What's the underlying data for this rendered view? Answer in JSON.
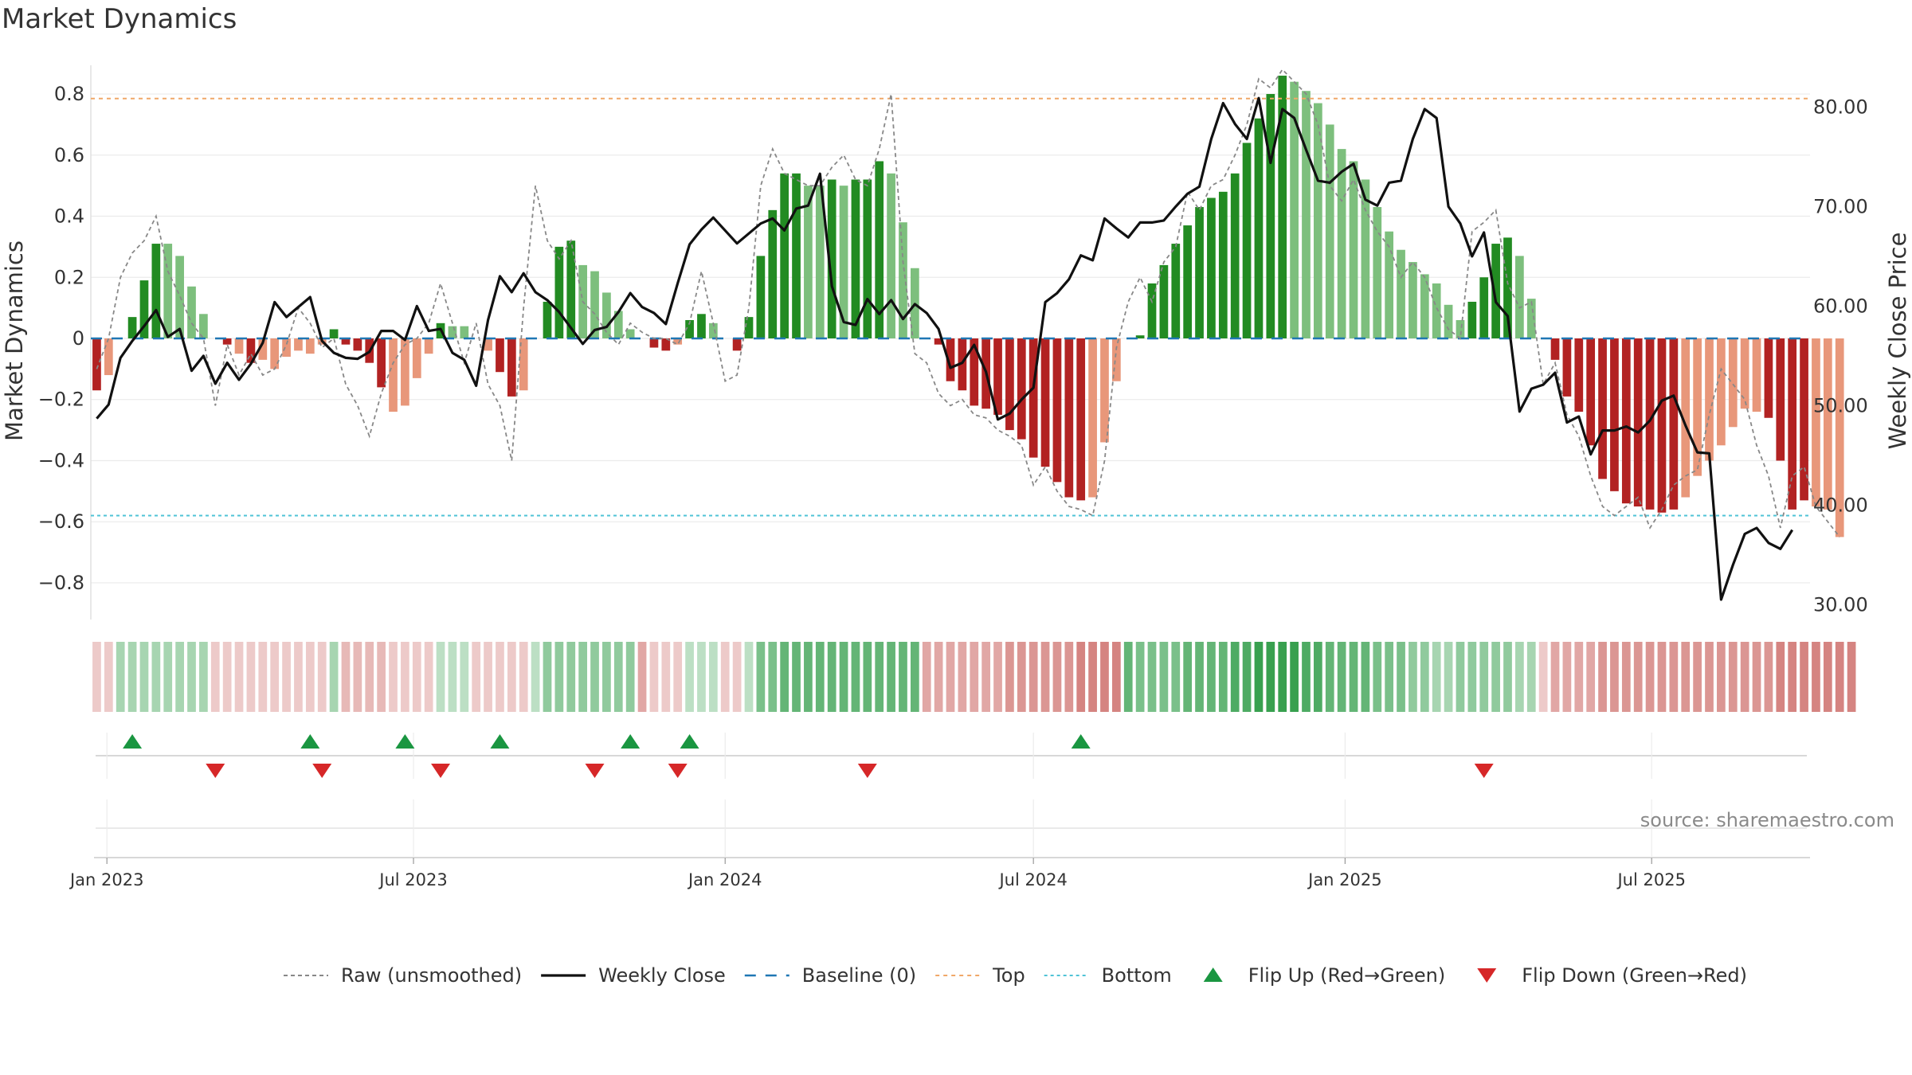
{
  "title": "Market Dynamics",
  "source": "source: sharemaestro.com",
  "colors": {
    "strong_green": "#228b22",
    "light_green": "#7dbf7d",
    "strong_red": "#b22222",
    "light_red": "#e8977a",
    "close": "#111111",
    "raw": "#888888",
    "baseline": "#1f77b4",
    "top": "#f0a868",
    "bottom": "#4fc3d6",
    "flip_up": "#1a9641",
    "flip_down": "#d62728"
  },
  "legend": [
    {
      "label": "Raw (unsmoothed)",
      "key": "raw"
    },
    {
      "label": "Weekly Close",
      "key": "close"
    },
    {
      "label": "Baseline (0)",
      "key": "baseline"
    },
    {
      "label": "Top",
      "key": "top"
    },
    {
      "label": "Bottom",
      "key": "bottom"
    },
    {
      "label": "Flip Up (Red→Green)",
      "key": "flip_up"
    },
    {
      "label": "Flip Down (Green→Red)",
      "key": "flip_down"
    }
  ],
  "chart_data": {
    "type": "bar",
    "title": "Market Dynamics",
    "ylabel": "Market Dynamics",
    "y2label": "Weekly Close Price",
    "ylim": [
      -0.92,
      0.92
    ],
    "y2lim": [
      28.5,
      85.0
    ],
    "yticks": [
      -0.8,
      -0.6,
      -0.4,
      -0.2,
      0,
      0.2,
      0.4,
      0.6,
      0.8
    ],
    "ytick_labels": [
      "−0.8",
      "−0.6",
      "−0.4",
      "−0.2",
      "0",
      "0.2",
      "0.4",
      "0.6",
      "0.8"
    ],
    "y2ticks": [
      30,
      40,
      50,
      60,
      70,
      80
    ],
    "y2tick_labels": [
      "30.00",
      "40.00",
      "50.00",
      "60.00",
      "70.00",
      "80.00"
    ],
    "top_level": 0.785,
    "bottom_level": -0.58,
    "baseline": 0,
    "x_start": "2022-12-26",
    "weeks": 145,
    "xticks": [
      {
        "date": "2023-01-01",
        "label": "Jan 2023"
      },
      {
        "date": "2023-07-01",
        "label": "Jul 2023"
      },
      {
        "date": "2024-01-01",
        "label": "Jan 2024"
      },
      {
        "date": "2024-07-01",
        "label": "Jul 2024"
      },
      {
        "date": "2025-01-01",
        "label": "Jan 2025"
      },
      {
        "date": "2025-07-01",
        "label": "Jul 2025"
      }
    ],
    "grid": true,
    "legend_position": "bottom",
    "momentum": [
      -0.17,
      -0.12,
      0.0,
      0.07,
      0.19,
      0.31,
      0.31,
      0.27,
      0.17,
      0.08,
      0.0,
      -0.02,
      -0.05,
      -0.08,
      -0.07,
      -0.1,
      -0.06,
      -0.04,
      -0.05,
      -0.02,
      0.03,
      -0.02,
      -0.04,
      -0.08,
      -0.16,
      -0.24,
      -0.22,
      -0.13,
      -0.05,
      0.05,
      0.04,
      0.04,
      0.0,
      -0.04,
      -0.11,
      -0.19,
      -0.17,
      0.0,
      0.12,
      0.3,
      0.32,
      0.24,
      0.22,
      0.15,
      0.09,
      0.03,
      0.0,
      -0.03,
      -0.04,
      -0.02,
      0.06,
      0.08,
      0.05,
      0.0,
      -0.04,
      0.07,
      0.27,
      0.42,
      0.54,
      0.54,
      0.5,
      0.5,
      0.52,
      0.5,
      0.52,
      0.52,
      0.58,
      0.54,
      0.38,
      0.23,
      0.0,
      -0.02,
      -0.14,
      -0.17,
      -0.22,
      -0.23,
      -0.25,
      -0.3,
      -0.33,
      -0.39,
      -0.42,
      -0.47,
      -0.52,
      -0.53,
      -0.52,
      -0.34,
      -0.14,
      0.0,
      0.01,
      0.18,
      0.24,
      0.31,
      0.37,
      0.43,
      0.46,
      0.48,
      0.54,
      0.64,
      0.72,
      0.8,
      0.86,
      0.84,
      0.81,
      0.77,
      0.7,
      0.62,
      0.58,
      0.52,
      0.43,
      0.35,
      0.29,
      0.25,
      0.21,
      0.18,
      0.11,
      0.06,
      0.12,
      0.2,
      0.31,
      0.33,
      0.27,
      0.13,
      0.0,
      -0.07,
      -0.19,
      -0.24,
      -0.35,
      -0.46,
      -0.5,
      -0.54,
      -0.55,
      -0.56,
      -0.57,
      -0.56,
      -0.52,
      -0.45,
      -0.4,
      -0.35,
      -0.29,
      -0.23,
      -0.24,
      -0.26,
      -0.4,
      -0.56,
      -0.53,
      -0.55,
      -0.56,
      -0.65
    ],
    "momentum_strength": [
      "s",
      "l",
      "l",
      "s",
      "s",
      "s",
      "l",
      "l",
      "l",
      "l",
      "l",
      "s",
      "l",
      "s",
      "l",
      "l",
      "l",
      "l",
      "l",
      "l",
      "s",
      "s",
      "s",
      "s",
      "s",
      "l",
      "l",
      "l",
      "l",
      "s",
      "l",
      "l",
      "l",
      "l",
      "s",
      "s",
      "l",
      "l",
      "s",
      "s",
      "s",
      "l",
      "l",
      "l",
      "l",
      "l",
      "l",
      "s",
      "s",
      "l",
      "s",
      "s",
      "l",
      "l",
      "s",
      "s",
      "s",
      "s",
      "s",
      "s",
      "l",
      "l",
      "s",
      "l",
      "s",
      "s",
      "s",
      "l",
      "l",
      "l",
      "l",
      "s",
      "s",
      "s",
      "s",
      "s",
      "s",
      "s",
      "s",
      "s",
      "s",
      "s",
      "s",
      "s",
      "l",
      "l",
      "l",
      "l",
      "s",
      "s",
      "s",
      "s",
      "s",
      "s",
      "s",
      "s",
      "s",
      "s",
      "s",
      "s",
      "s",
      "l",
      "l",
      "l",
      "l",
      "l",
      "l",
      "l",
      "l",
      "l",
      "l",
      "l",
      "l",
      "l",
      "l",
      "l",
      "s",
      "s",
      "s",
      "s",
      "l",
      "l",
      "l",
      "s",
      "s",
      "s",
      "s",
      "s",
      "s",
      "s",
      "s",
      "s",
      "s",
      "s",
      "l",
      "l",
      "l",
      "l",
      "l",
      "l",
      "l",
      "s",
      "s",
      "s",
      "s",
      "l",
      "l",
      "l",
      "s"
    ],
    "raw": [
      -0.1,
      0.0,
      0.2,
      0.28,
      0.32,
      0.4,
      0.22,
      0.14,
      0.05,
      0.0,
      -0.22,
      -0.02,
      -0.12,
      -0.05,
      -0.12,
      -0.1,
      -0.02,
      0.1,
      0.05,
      -0.03,
      0.0,
      -0.15,
      -0.22,
      -0.32,
      -0.18,
      -0.08,
      -0.02,
      0.0,
      0.05,
      0.18,
      0.05,
      -0.08,
      0.05,
      -0.15,
      -0.22,
      -0.4,
      0.1,
      0.5,
      0.32,
      0.26,
      0.32,
      0.12,
      0.08,
      0.02,
      -0.02,
      0.05,
      0.02,
      0.0,
      0.0,
      -0.02,
      0.05,
      0.22,
      0.05,
      -0.14,
      -0.12,
      0.1,
      0.5,
      0.62,
      0.54,
      0.52,
      0.5,
      0.5,
      0.56,
      0.6,
      0.52,
      0.5,
      0.62,
      0.8,
      0.25,
      -0.05,
      -0.08,
      -0.18,
      -0.22,
      -0.2,
      -0.25,
      -0.26,
      -0.3,
      -0.32,
      -0.35,
      -0.48,
      -0.42,
      -0.5,
      -0.55,
      -0.56,
      -0.58,
      -0.4,
      -0.03,
      0.12,
      0.2,
      0.12,
      0.25,
      0.3,
      0.48,
      0.42,
      0.5,
      0.52,
      0.6,
      0.7,
      0.85,
      0.82,
      0.88,
      0.84,
      0.8,
      0.7,
      0.5,
      0.45,
      0.52,
      0.42,
      0.35,
      0.3,
      0.2,
      0.25,
      0.2,
      0.1,
      0.03,
      0.0,
      0.35,
      0.38,
      0.42,
      0.18,
      0.1,
      0.12,
      -0.15,
      -0.08,
      -0.25,
      -0.32,
      -0.45,
      -0.55,
      -0.58,
      -0.55,
      -0.52,
      -0.62,
      -0.56,
      -0.48,
      -0.45,
      -0.43,
      -0.25,
      -0.1,
      -0.15,
      -0.2,
      -0.35,
      -0.45,
      -0.62,
      -0.45,
      -0.42,
      -0.55,
      -0.6,
      -0.65
    ],
    "close": [
      48.7,
      50.1,
      54.8,
      56.5,
      58.0,
      59.6,
      56.9,
      57.7,
      53.5,
      55.0,
      52.2,
      54.3,
      52.6,
      54.2,
      56.3,
      60.4,
      58.9,
      59.9,
      60.9,
      56.5,
      55.3,
      54.8,
      54.7,
      55.4,
      57.5,
      57.5,
      56.6,
      60.0,
      57.5,
      57.7,
      55.3,
      54.6,
      52.0,
      58.6,
      63.0,
      61.4,
      63.3,
      61.4,
      60.6,
      59.4,
      57.8,
      56.2,
      57.6,
      57.9,
      59.4,
      61.3,
      59.9,
      59.3,
      58.2,
      62.3,
      66.2,
      67.7,
      68.9,
      67.6,
      66.3,
      67.3,
      68.3,
      68.8,
      67.6,
      69.8,
      70.1,
      73.3,
      62.0,
      58.4,
      58.1,
      60.7,
      59.2,
      60.6,
      58.7,
      60.2,
      59.3,
      57.7,
      53.8,
      54.3,
      56.1,
      53.4,
      48.6,
      49.2,
      50.6,
      51.8,
      60.4,
      61.3,
      62.7,
      65.1,
      64.6,
      68.8,
      67.8,
      66.9,
      68.4,
      68.4,
      68.6,
      70.0,
      71.3,
      72.0,
      76.8,
      80.4,
      78.3,
      76.8,
      80.9,
      74.4,
      79.8,
      78.9,
      75.7,
      72.6,
      72.4,
      73.5,
      74.3,
      70.7,
      70.1,
      72.4,
      72.6,
      76.8,
      79.8,
      78.9,
      70.0,
      68.3,
      65.0,
      67.4,
      60.4,
      59.0,
      49.4,
      51.7,
      52.1,
      53.3,
      48.3,
      48.9,
      45.1,
      47.5,
      47.5,
      47.9,
      47.3,
      48.5,
      50.5,
      51.0,
      48.0,
      45.3,
      45.2,
      30.5,
      34.0,
      37.1,
      37.7,
      36.2,
      35.6,
      37.5
    ]
  },
  "regime_band": {
    "strength": [
      0.3,
      0.3,
      0.4,
      0.4,
      0.4,
      0.4,
      0.4,
      0.4,
      0.4,
      0.4,
      0.3,
      0.3,
      0.3,
      0.3,
      0.3,
      0.3,
      0.3,
      0.3,
      0.3,
      0.3,
      0.4,
      0.4,
      0.4,
      0.4,
      0.4,
      0.3,
      0.3,
      0.3,
      0.3,
      0.3,
      0.3,
      0.3,
      0.3,
      0.3,
      0.3,
      0.3,
      0.3,
      0.3,
      0.5,
      0.5,
      0.5,
      0.5,
      0.5,
      0.5,
      0.5,
      0.5,
      0.5,
      0.3,
      0.3,
      0.3,
      0.3,
      0.3,
      0.3,
      0.3,
      0.3,
      0.3,
      0.6,
      0.6,
      0.7,
      0.7,
      0.7,
      0.7,
      0.7,
      0.7,
      0.7,
      0.7,
      0.7,
      0.7,
      0.7,
      0.7,
      0.5,
      0.5,
      0.5,
      0.5,
      0.5,
      0.5,
      0.5,
      0.6,
      0.6,
      0.6,
      0.6,
      0.6,
      0.6,
      0.7,
      0.7,
      0.7,
      0.7,
      0.7,
      0.6,
      0.6,
      0.6,
      0.6,
      0.7,
      0.7,
      0.7,
      0.7,
      0.8,
      0.8,
      0.9,
      0.9,
      0.9,
      0.9,
      0.8,
      0.8,
      0.7,
      0.7,
      0.7,
      0.7,
      0.6,
      0.6,
      0.6,
      0.5,
      0.5,
      0.4,
      0.4,
      0.5,
      0.5,
      0.5,
      0.5,
      0.5,
      0.4,
      0.4,
      0.3,
      0.5,
      0.5,
      0.5,
      0.5,
      0.6,
      0.6,
      0.6,
      0.6,
      0.6,
      0.6,
      0.6,
      0.6,
      0.6,
      0.6,
      0.6,
      0.6,
      0.6,
      0.6,
      0.6,
      0.7,
      0.7,
      0.7,
      0.7,
      0.7,
      0.7,
      0.7
    ]
  },
  "flips": {
    "up_weeks": [
      3,
      18,
      26,
      34,
      45,
      50,
      83
    ],
    "down_weeks": [
      10,
      19,
      29,
      42,
      49,
      65,
      117
    ]
  }
}
